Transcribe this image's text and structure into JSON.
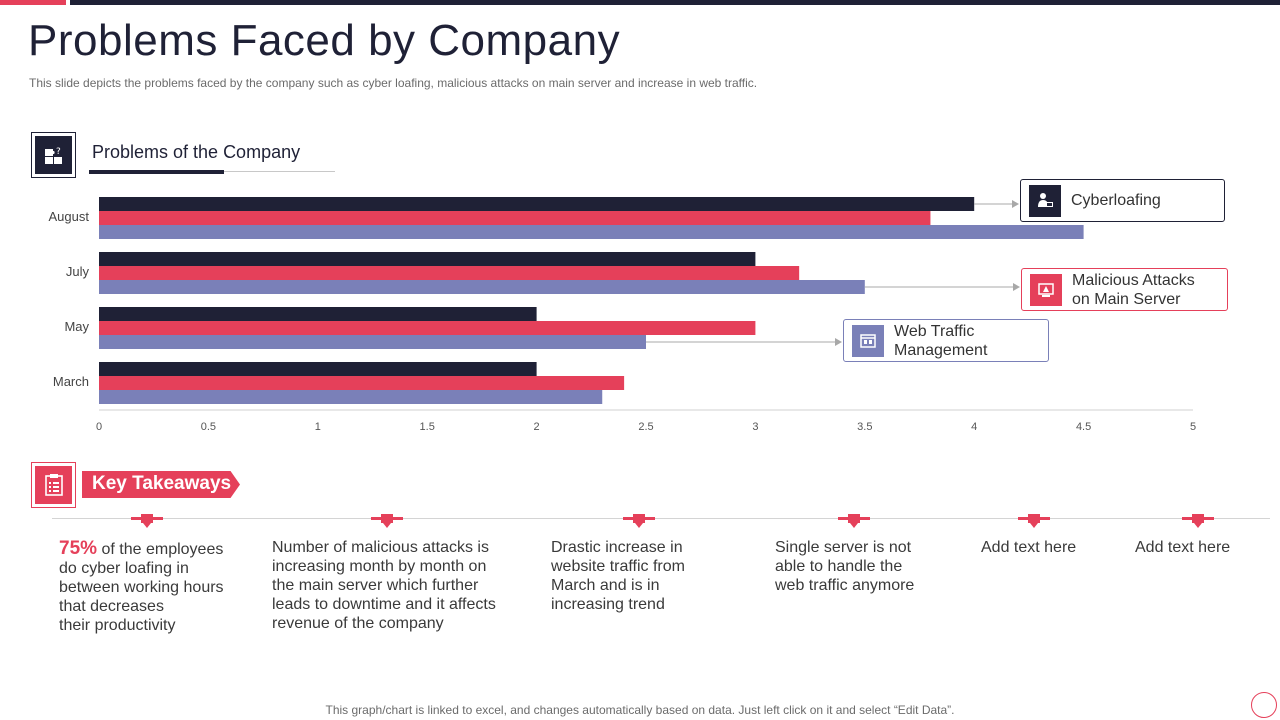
{
  "slide": {
    "title": "Problems Faced by Company",
    "subtitle": "This slide depicts the problems faced by the company such as cyber loafing, malicious attacks on main server and increase in web traffic.",
    "section_title": "Problems of the Company",
    "footer": "This graph/chart is linked to excel, and changes automatically based on data. Just left click on it and select “Edit Data”.",
    "icons": {
      "section": "problem-puzzle-icon",
      "takeaways": "clipboard-checklist-icon"
    }
  },
  "colors": {
    "navy": "#1f2136",
    "red": "#e5405a",
    "periwinkle": "#7a80b8"
  },
  "chart_data": {
    "type": "bar",
    "orientation": "horizontal",
    "categories": [
      "August",
      "July",
      "May",
      "March"
    ],
    "series": [
      {
        "values": [
          4.0,
          3.0,
          2.0,
          2.0
        ],
        "color": "#1f2136"
      },
      {
        "values": [
          3.8,
          3.2,
          3.0,
          2.4
        ],
        "color": "#e5405a"
      },
      {
        "values": [
          4.5,
          3.5,
          2.5,
          2.3
        ],
        "color": "#7a80b8"
      }
    ],
    "xticks": [
      "0",
      "0.5",
      "1",
      "1.5",
      "2",
      "2.5",
      "3",
      "3.5",
      "4",
      "4.5",
      "5"
    ],
    "xlim": [
      0,
      5
    ],
    "grid": false,
    "title": "",
    "xlabel": "",
    "ylabel": ""
  },
  "callouts": [
    {
      "label": "Cyberloafing",
      "icon": "person-laptop-icon",
      "color": "#1f2136"
    },
    {
      "label_line1": "Malicious Attacks",
      "label_line2": "on Main Server",
      "icon": "server-alert-icon",
      "color": "#e5405a"
    },
    {
      "label_line1": "Web Traffic",
      "label_line2": "Management",
      "icon": "browser-window-icon",
      "color": "#7a80b8"
    }
  ],
  "takeaways": {
    "heading": "Key Takeaways",
    "items": [
      {
        "highlight": "75%",
        "text_first": "of the employees",
        "text_rest": [
          "do cyber loafing in",
          "between working hours",
          "that decreases",
          "their productivity"
        ]
      },
      {
        "lines": [
          "Number of malicious attacks is",
          "increasing month by month on",
          "the main server which further",
          "leads to downtime and it affects",
          "revenue  of the company"
        ]
      },
      {
        "lines": [
          "Drastic increase in",
          "website traffic from",
          "March and is in",
          "increasing trend"
        ]
      },
      {
        "lines": [
          "Single server is not",
          "able to handle the",
          "web traffic anymore"
        ]
      },
      {
        "lines": [
          "Add text here"
        ]
      },
      {
        "lines": [
          "Add text here"
        ]
      }
    ]
  }
}
